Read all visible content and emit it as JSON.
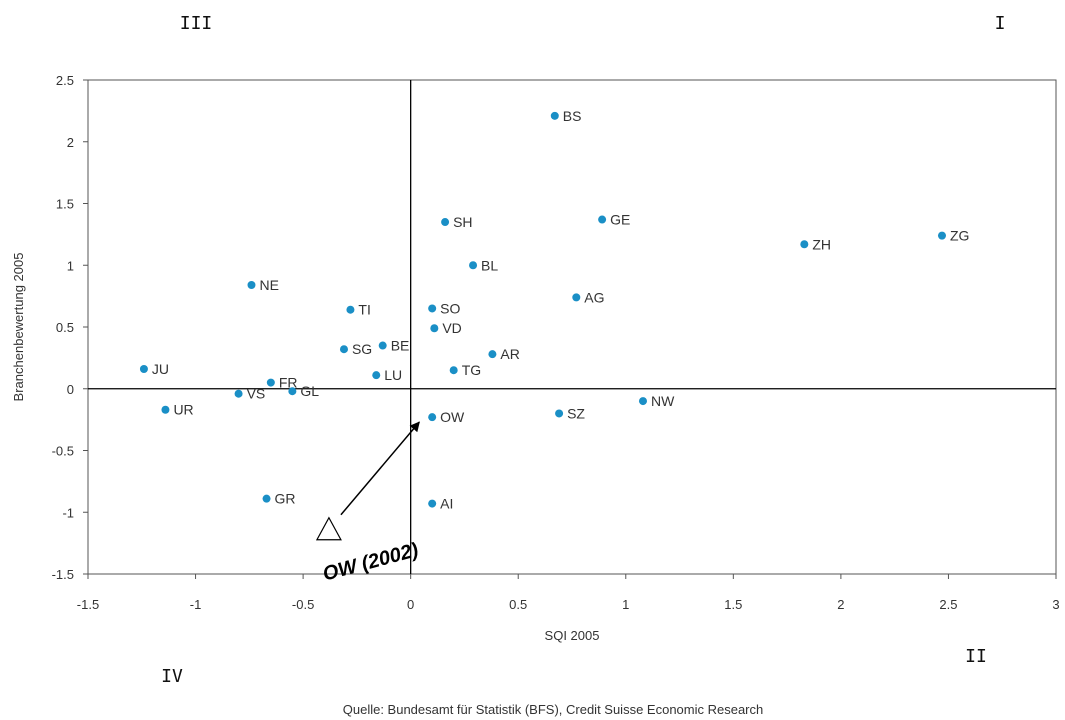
{
  "chart_data": {
    "type": "scatter",
    "xlabel": "SQI 2005",
    "ylabel": "Branchenbewertung 2005",
    "xlim": [
      -1.5,
      3
    ],
    "ylim": [
      -1.5,
      2.5
    ],
    "xticks": [
      "-1.5",
      "-1",
      "-0.5",
      "0",
      "0.5",
      "1",
      "1.5",
      "2",
      "2.5",
      "3"
    ],
    "yticks": [
      "2.5",
      "2",
      "1.5",
      "1",
      "0.5",
      "0",
      "-0.5",
      "-1",
      "-1.5"
    ],
    "grid": false,
    "marker_color": "#1a8fc6",
    "points": [
      {
        "label": "BS",
        "x": 0.67,
        "y": 2.21
      },
      {
        "label": "SH",
        "x": 0.16,
        "y": 1.35
      },
      {
        "label": "GE",
        "x": 0.89,
        "y": 1.37
      },
      {
        "label": "ZH",
        "x": 1.83,
        "y": 1.17
      },
      {
        "label": "ZG",
        "x": 2.47,
        "y": 1.24
      },
      {
        "label": "BL",
        "x": 0.29,
        "y": 1.0
      },
      {
        "label": "NE",
        "x": -0.74,
        "y": 0.84
      },
      {
        "label": "AG",
        "x": 0.77,
        "y": 0.74
      },
      {
        "label": "TI",
        "x": -0.28,
        "y": 0.64
      },
      {
        "label": "SO",
        "x": 0.1,
        "y": 0.65
      },
      {
        "label": "VD",
        "x": 0.11,
        "y": 0.49
      },
      {
        "label": "SG",
        "x": -0.31,
        "y": 0.32
      },
      {
        "label": "BE",
        "x": -0.13,
        "y": 0.35
      },
      {
        "label": "AR",
        "x": 0.38,
        "y": 0.28
      },
      {
        "label": "JU",
        "x": -1.24,
        "y": 0.16
      },
      {
        "label": "LU",
        "x": -0.16,
        "y": 0.11
      },
      {
        "label": "TG",
        "x": 0.2,
        "y": 0.15
      },
      {
        "label": "FR",
        "x": -0.65,
        "y": 0.05
      },
      {
        "label": "GL",
        "x": -0.55,
        "y": -0.02
      },
      {
        "label": "VS",
        "x": -0.8,
        "y": -0.04
      },
      {
        "label": "UR",
        "x": -1.14,
        "y": -0.17
      },
      {
        "label": "OW",
        "x": 0.1,
        "y": -0.23
      },
      {
        "label": "SZ",
        "x": 0.69,
        "y": -0.2
      },
      {
        "label": "NW",
        "x": 1.08,
        "y": -0.1
      },
      {
        "label": "GR",
        "x": -0.67,
        "y": -0.89
      },
      {
        "label": "AI",
        "x": 0.1,
        "y": -0.93
      }
    ],
    "annotation": {
      "label": "OW (2002)",
      "from": {
        "x": -0.38,
        "y": -1.15
      },
      "to": {
        "x": 0.04,
        "y": -0.27
      }
    },
    "quadrants": {
      "q1": "I",
      "q2": "II",
      "q3": "III",
      "q4": "IV"
    },
    "source": "Quelle: Bundesamt für Statistik (BFS), Credit Suisse Economic Research"
  }
}
